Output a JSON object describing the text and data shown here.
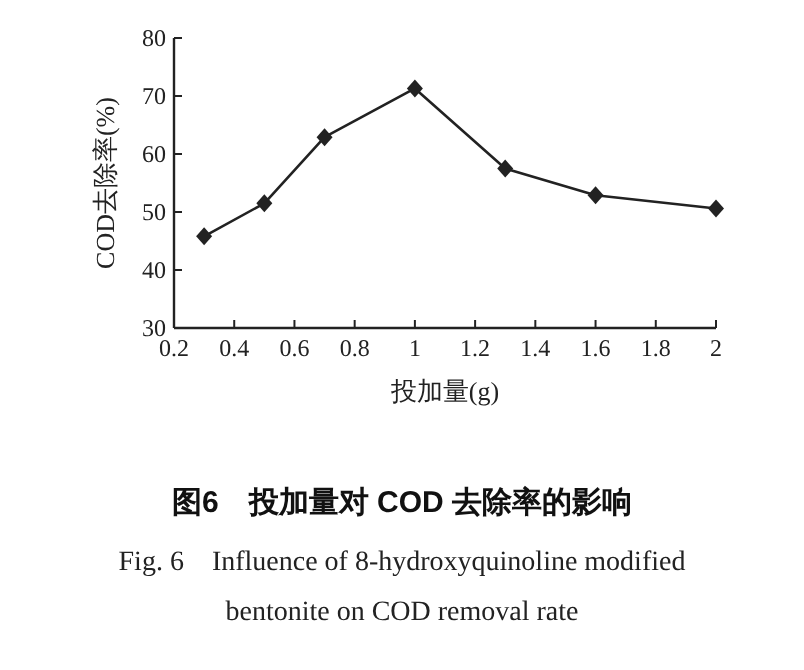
{
  "chart_data": {
    "type": "line",
    "title": "图6　投加量对 COD 去除率的影响",
    "subtitle": "Fig. 6　Influence of 8-hydroxyquinoline modified bentonite on COD removal rate",
    "xlabel": "投加量(g)",
    "ylabel": "COD去除率(%)",
    "x": [
      0.3,
      0.5,
      0.7,
      1.0,
      1.3,
      1.6,
      2.0
    ],
    "series": [
      {
        "color": "#222222",
        "values": [
          45.8,
          51.5,
          62.9,
          71.3,
          57.5,
          52.9,
          50.6
        ]
      }
    ],
    "xlim": [
      0.2,
      2.0
    ],
    "xticks": [
      0.2,
      0.4,
      0.6,
      0.8,
      1,
      1.2,
      1.4,
      1.6,
      1.8,
      2
    ],
    "ylim": [
      30,
      80
    ],
    "yticks": [
      30,
      40,
      50,
      60,
      70,
      80
    ],
    "marker": "diamond",
    "line_style": "solid",
    "grid": false
  }
}
